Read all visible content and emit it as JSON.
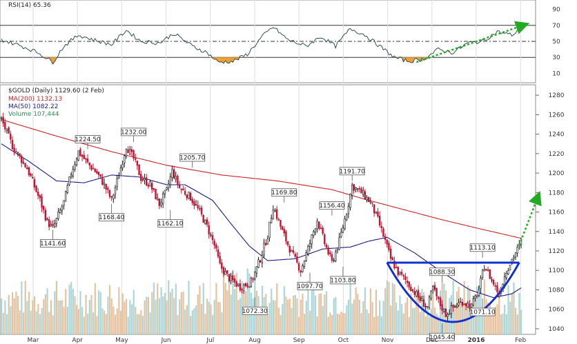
{
  "chart_data": {
    "type": "candlestick",
    "title": "$GOLD (Daily) 1129.60 (2 Feb)",
    "legend": [
      {
        "name": "MA(200) 1132.13",
        "color": "#cc2222"
      },
      {
        "name": "MA(50) 1082.22",
        "color": "#1a1a8c"
      },
      {
        "name": "Volume 107,444",
        "color": "#2e8b57"
      }
    ],
    "x_months": [
      "Mar",
      "Apr",
      "May",
      "Jun",
      "Jul",
      "Aug",
      "Sep",
      "Oct",
      "Nov",
      "Dec",
      "2016",
      "Feb"
    ],
    "price_axis": {
      "ylim": [
        1035,
        1290
      ],
      "ticks": [
        1040,
        1060,
        1080,
        1100,
        1120,
        1140,
        1160,
        1180,
        1200,
        1220,
        1240,
        1260,
        1280
      ]
    },
    "price_labels": [
      {
        "text": "1224.50",
        "value": 1224.5
      },
      {
        "text": "1232.00",
        "value": 1232.0
      },
      {
        "text": "1141.60",
        "value": 1141.6
      },
      {
        "text": "1168.40",
        "value": 1168.4
      },
      {
        "text": "1205.70",
        "value": 1205.7
      },
      {
        "text": "1162.10",
        "value": 1162.1
      },
      {
        "text": "1169.80",
        "value": 1169.8
      },
      {
        "text": "1072.30",
        "value": 1072.3
      },
      {
        "text": "1156.40",
        "value": 1156.4
      },
      {
        "text": "1097.70",
        "value": 1097.7
      },
      {
        "text": "1103.80",
        "value": 1103.8
      },
      {
        "text": "1191.70",
        "value": 1191.7
      },
      {
        "text": "1088.30",
        "value": 1088.3
      },
      {
        "text": "1045.40",
        "value": 1045.4
      },
      {
        "text": "1113.10",
        "value": 1113.1
      },
      {
        "text": "1071.10",
        "value": 1071.1
      }
    ],
    "anchors": [
      {
        "d": 0,
        "v": 1255
      },
      {
        "d": 6,
        "v": 1228
      },
      {
        "d": 14,
        "v": 1205
      },
      {
        "d": 21,
        "v": 1172
      },
      {
        "d": 25,
        "v": 1150
      },
      {
        "d": 28,
        "v": 1143
      },
      {
        "d": 34,
        "v": 1170
      },
      {
        "d": 38,
        "v": 1200
      },
      {
        "d": 42,
        "v": 1222
      },
      {
        "d": 47,
        "v": 1210
      },
      {
        "d": 52,
        "v": 1200
      },
      {
        "d": 56,
        "v": 1188
      },
      {
        "d": 60,
        "v": 1172
      },
      {
        "d": 64,
        "v": 1198
      },
      {
        "d": 68,
        "v": 1228
      },
      {
        "d": 72,
        "v": 1215
      },
      {
        "d": 76,
        "v": 1195
      },
      {
        "d": 81,
        "v": 1188
      },
      {
        "d": 86,
        "v": 1168
      },
      {
        "d": 90,
        "v": 1182
      },
      {
        "d": 93,
        "v": 1202
      },
      {
        "d": 97,
        "v": 1185
      },
      {
        "d": 103,
        "v": 1175
      },
      {
        "d": 108,
        "v": 1160
      },
      {
        "d": 112,
        "v": 1145
      },
      {
        "d": 116,
        "v": 1126
      },
      {
        "d": 119,
        "v": 1105
      },
      {
        "d": 124,
        "v": 1092
      },
      {
        "d": 130,
        "v": 1083
      },
      {
        "d": 136,
        "v": 1088
      },
      {
        "d": 141,
        "v": 1112
      },
      {
        "d": 145,
        "v": 1136
      },
      {
        "d": 148,
        "v": 1166
      },
      {
        "d": 153,
        "v": 1140
      },
      {
        "d": 158,
        "v": 1118
      },
      {
        "d": 163,
        "v": 1100
      },
      {
        "d": 168,
        "v": 1128
      },
      {
        "d": 172,
        "v": 1152
      },
      {
        "d": 176,
        "v": 1128
      },
      {
        "d": 180,
        "v": 1108
      },
      {
        "d": 184,
        "v": 1130
      },
      {
        "d": 188,
        "v": 1160
      },
      {
        "d": 191,
        "v": 1187
      },
      {
        "d": 196,
        "v": 1180
      },
      {
        "d": 201,
        "v": 1170
      },
      {
        "d": 205,
        "v": 1152
      },
      {
        "d": 209,
        "v": 1130
      },
      {
        "d": 212,
        "v": 1112
      },
      {
        "d": 216,
        "v": 1098
      },
      {
        "d": 220,
        "v": 1090
      },
      {
        "d": 224,
        "v": 1080
      },
      {
        "d": 228,
        "v": 1070
      },
      {
        "d": 232,
        "v": 1062
      },
      {
        "d": 235,
        "v": 1082
      },
      {
        "d": 238,
        "v": 1068
      },
      {
        "d": 242,
        "v": 1055
      },
      {
        "d": 246,
        "v": 1062
      },
      {
        "d": 251,
        "v": 1068
      },
      {
        "d": 256,
        "v": 1063
      },
      {
        "d": 260,
        "v": 1080
      },
      {
        "d": 263,
        "v": 1105
      },
      {
        "d": 267,
        "v": 1090
      },
      {
        "d": 271,
        "v": 1076
      },
      {
        "d": 275,
        "v": 1100
      },
      {
        "d": 279,
        "v": 1115
      },
      {
        "d": 283,
        "v": 1128
      }
    ],
    "ma200": [
      {
        "d": 0,
        "v": 1255
      },
      {
        "d": 30,
        "v": 1238
      },
      {
        "d": 60,
        "v": 1222
      },
      {
        "d": 90,
        "v": 1208
      },
      {
        "d": 120,
        "v": 1198
      },
      {
        "d": 150,
        "v": 1192
      },
      {
        "d": 180,
        "v": 1183
      },
      {
        "d": 200,
        "v": 1172
      },
      {
        "d": 220,
        "v": 1162
      },
      {
        "d": 240,
        "v": 1152
      },
      {
        "d": 260,
        "v": 1143
      },
      {
        "d": 283,
        "v": 1133
      }
    ],
    "ma50": [
      {
        "d": 0,
        "v": 1230
      },
      {
        "d": 15,
        "v": 1212
      },
      {
        "d": 30,
        "v": 1192
      },
      {
        "d": 45,
        "v": 1190
      },
      {
        "d": 60,
        "v": 1198
      },
      {
        "d": 75,
        "v": 1196
      },
      {
        "d": 90,
        "v": 1188
      },
      {
        "d": 100,
        "v": 1188
      },
      {
        "d": 115,
        "v": 1172
      },
      {
        "d": 125,
        "v": 1148
      },
      {
        "d": 135,
        "v": 1125
      },
      {
        "d": 145,
        "v": 1110
      },
      {
        "d": 160,
        "v": 1112
      },
      {
        "d": 175,
        "v": 1122
      },
      {
        "d": 190,
        "v": 1124
      },
      {
        "d": 200,
        "v": 1130
      },
      {
        "d": 210,
        "v": 1134
      },
      {
        "d": 225,
        "v": 1118
      },
      {
        "d": 240,
        "v": 1098
      },
      {
        "d": 255,
        "v": 1080
      },
      {
        "d": 268,
        "v": 1072
      },
      {
        "d": 278,
        "v": 1076
      },
      {
        "d": 283,
        "v": 1082
      }
    ],
    "rsi": {
      "label": "RSI(14) 65.36",
      "ticks": [
        10,
        30,
        50,
        70,
        90
      ],
      "lines": [
        30,
        50,
        70
      ],
      "anchors": [
        {
          "d": 0,
          "v": 52
        },
        {
          "d": 10,
          "v": 45
        },
        {
          "d": 20,
          "v": 36
        },
        {
          "d": 28,
          "v": 24
        },
        {
          "d": 34,
          "v": 44
        },
        {
          "d": 42,
          "v": 58
        },
        {
          "d": 50,
          "v": 52
        },
        {
          "d": 60,
          "v": 46
        },
        {
          "d": 68,
          "v": 64
        },
        {
          "d": 76,
          "v": 50
        },
        {
          "d": 86,
          "v": 48
        },
        {
          "d": 94,
          "v": 60
        },
        {
          "d": 104,
          "v": 44
        },
        {
          "d": 112,
          "v": 36
        },
        {
          "d": 118,
          "v": 24
        },
        {
          "d": 126,
          "v": 25
        },
        {
          "d": 134,
          "v": 34
        },
        {
          "d": 142,
          "v": 56
        },
        {
          "d": 148,
          "v": 68
        },
        {
          "d": 156,
          "v": 52
        },
        {
          "d": 166,
          "v": 44
        },
        {
          "d": 174,
          "v": 56
        },
        {
          "d": 182,
          "v": 44
        },
        {
          "d": 190,
          "v": 66
        },
        {
          "d": 198,
          "v": 58
        },
        {
          "d": 206,
          "v": 44
        },
        {
          "d": 214,
          "v": 30
        },
        {
          "d": 222,
          "v": 25
        },
        {
          "d": 230,
          "v": 28
        },
        {
          "d": 238,
          "v": 40
        },
        {
          "d": 246,
          "v": 36
        },
        {
          "d": 254,
          "v": 48
        },
        {
          "d": 262,
          "v": 50
        },
        {
          "d": 270,
          "v": 62
        },
        {
          "d": 278,
          "v": 58
        },
        {
          "d": 283,
          "v": 65
        }
      ]
    }
  }
}
